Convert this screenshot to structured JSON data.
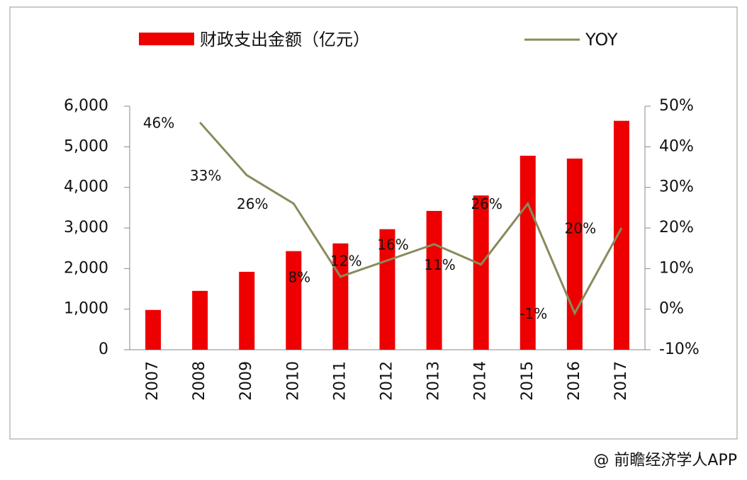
{
  "chart_data": {
    "type": "bar-line",
    "categories": [
      "2007",
      "2008",
      "2009",
      "2010",
      "2011",
      "2012",
      "2013",
      "2014",
      "2015",
      "2016",
      "2017"
    ],
    "series": [
      {
        "name": "财政支出金额（亿元）",
        "type": "bar",
        "color": "#ee0000",
        "values": [
          980,
          1450,
          1920,
          2430,
          2620,
          2970,
          3420,
          3800,
          4780,
          4710,
          5640
        ]
      },
      {
        "name": "YOY",
        "type": "line",
        "axis": "y2",
        "color": "#8a8a5c",
        "values": [
          null,
          46,
          33,
          26,
          8,
          12,
          16,
          11,
          26,
          -1,
          20
        ],
        "value_labels": [
          null,
          "46%",
          "33%",
          "26%",
          "8%",
          "12%",
          "16%",
          "11%",
          "26%",
          "-1%",
          "20%"
        ]
      }
    ],
    "ylim": [
      0,
      6000
    ],
    "yticks": [
      0,
      {
        "value": 1000,
        "label": "1,000"
      },
      {
        "value": 2000,
        "label": "2,000"
      },
      {
        "value": 3000,
        "label": "3,000"
      },
      {
        "value": 4000,
        "label": "4,000"
      },
      {
        "value": 5000,
        "label": "5,000"
      },
      {
        "value": 6000,
        "label": "6,000"
      }
    ],
    "y2lim": [
      -10,
      50
    ],
    "y2ticks": [
      {
        "value": -10,
        "label": "-10%"
      },
      {
        "value": 0,
        "label": "0%"
      },
      {
        "value": 10,
        "label": "10%"
      },
      {
        "value": 20,
        "label": "20%"
      },
      {
        "value": 30,
        "label": "30%"
      },
      {
        "value": 40,
        "label": "40%"
      },
      {
        "value": 50,
        "label": "50%"
      }
    ],
    "source": "@ 前瞻经济学人APP"
  }
}
